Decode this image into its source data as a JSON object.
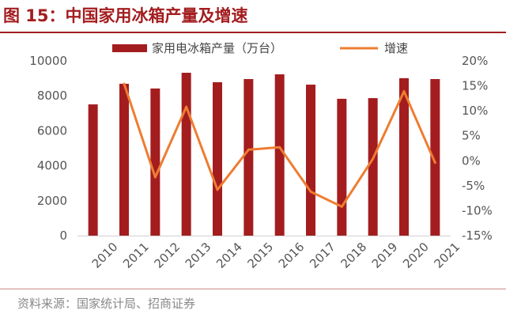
{
  "title": "图 15：中国家用冰箱产量及增速",
  "source": "资料来源：国家统计局、招商证券",
  "colors": {
    "bar": "#a31d1f",
    "line": "#ee7d31",
    "title": "#a31d1f"
  },
  "chart_data": {
    "type": "bar+line",
    "categories": [
      "2010",
      "2011",
      "2012",
      "2013",
      "2014",
      "2015",
      "2016",
      "2017",
      "2018",
      "2019",
      "2020",
      "2021"
    ],
    "series": [
      {
        "name": "家用电冰箱产量（万台）",
        "type": "bar",
        "axis": "left",
        "values": [
          7510,
          8690,
          8420,
          9320,
          8780,
          8960,
          9230,
          8640,
          7830,
          7870,
          9010,
          8960
        ]
      },
      {
        "name": "增速",
        "type": "line",
        "axis": "right",
        "values": [
          null,
          15.4,
          -3.3,
          10.8,
          -5.8,
          2.2,
          2.7,
          -6.2,
          -9.2,
          0.4,
          13.9,
          -0.4
        ]
      }
    ],
    "left_axis": {
      "ylim": [
        0,
        10000
      ],
      "ticks": [
        "0",
        "2000",
        "4000",
        "6000",
        "8000",
        "10000"
      ]
    },
    "right_axis": {
      "ylim": [
        -15,
        20
      ],
      "ticks": [
        "-15%",
        "-10%",
        "-5%",
        "0%",
        "5%",
        "10%",
        "15%",
        "20%"
      ]
    },
    "legend": "top",
    "grid": false
  }
}
